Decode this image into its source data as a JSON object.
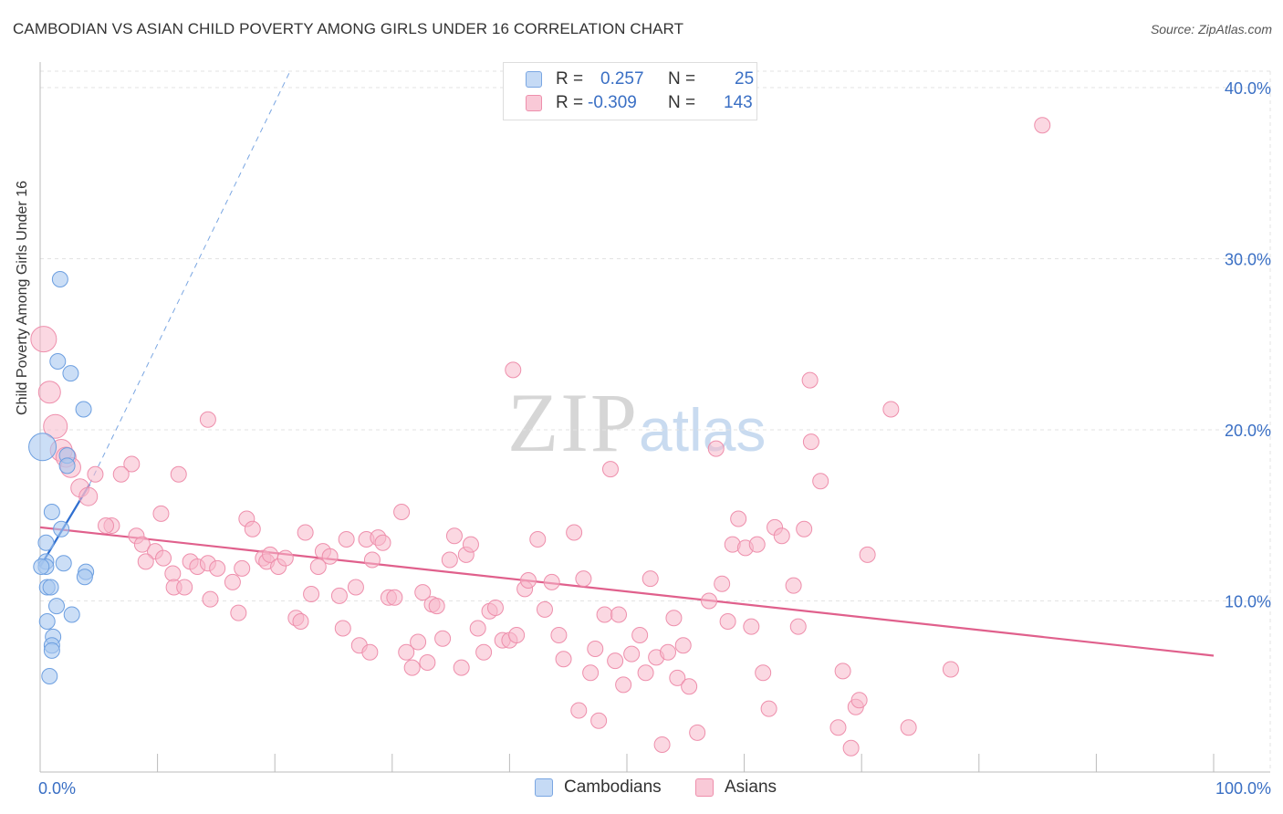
{
  "header": {
    "title": "CAMBODIAN VS ASIAN CHILD POVERTY AMONG GIRLS UNDER 16 CORRELATION CHART",
    "source": "Source: ZipAtlas.com"
  },
  "legend": {
    "rows": [
      {
        "r_label": "R =",
        "r_value": "0.257",
        "n_label": "N =",
        "n_value": "25"
      },
      {
        "r_label": "R =",
        "r_value": "-0.309",
        "n_label": "N =",
        "n_value": "143"
      }
    ]
  },
  "bottom_legend": {
    "cambodians": "Cambodians",
    "asians": "Asians"
  },
  "watermark": {
    "zip": "ZIP",
    "atlas": "atlas"
  },
  "colors": {
    "cambodian_fill": "#a9c8f0",
    "cambodian_stroke": "#6d9fe0",
    "cambodian_line": "#2f6fd0",
    "asian_fill": "#f7b8cb",
    "asian_stroke": "#ee8fac",
    "asian_line": "#e0608c",
    "tick_label": "#3a6fc4",
    "grid": "#e3e3e3"
  },
  "chart_data": {
    "type": "scatter",
    "title": "CAMBODIAN VS ASIAN CHILD POVERTY AMONG GIRLS UNDER 16 CORRELATION CHART",
    "xlabel": "",
    "ylabel": "Child Poverty Among Girls Under 16",
    "xlim": [
      0,
      100
    ],
    "ylim": [
      0,
      40
    ],
    "x_tick_labels": {
      "0": "0.0%",
      "100": "100.0%"
    },
    "y_ticks": [
      10,
      20,
      30,
      40
    ],
    "y_tick_labels": [
      "10.0%",
      "20.0%",
      "30.0%",
      "40.0%"
    ],
    "grid": true,
    "legend_placement": "top-center",
    "series": [
      {
        "name": "Cambodians",
        "r": 0.257,
        "n": 25,
        "points": [
          [
            0.2,
            19.0
          ],
          [
            1.7,
            28.8
          ],
          [
            1.5,
            24.0
          ],
          [
            2.6,
            23.3
          ],
          [
            3.7,
            21.2
          ],
          [
            2.3,
            18.5
          ],
          [
            2.3,
            17.9
          ],
          [
            1.0,
            15.2
          ],
          [
            1.8,
            14.2
          ],
          [
            0.5,
            13.4
          ],
          [
            0.5,
            12.3
          ],
          [
            0.5,
            12.0
          ],
          [
            2.0,
            12.2
          ],
          [
            3.9,
            11.7
          ],
          [
            3.8,
            11.4
          ],
          [
            0.6,
            10.8
          ],
          [
            0.9,
            10.8
          ],
          [
            1.4,
            9.7
          ],
          [
            2.7,
            9.2
          ],
          [
            0.6,
            8.8
          ],
          [
            1.1,
            7.9
          ],
          [
            1.0,
            7.4
          ],
          [
            1.0,
            7.1
          ],
          [
            0.8,
            5.6
          ],
          [
            0.1,
            12.0
          ]
        ],
        "trend": {
          "x": [
            0.0,
            4.2
          ],
          "y": [
            12.0,
            16.8
          ]
        },
        "trend_extended": {
          "x": [
            4.2,
            21.3
          ],
          "y": [
            16.8,
            40.0
          ]
        }
      },
      {
        "name": "Asians",
        "r": -0.309,
        "n": 143,
        "points": [
          [
            0.3,
            25.3
          ],
          [
            0.8,
            22.2
          ],
          [
            1.3,
            20.2
          ],
          [
            1.8,
            18.8
          ],
          [
            2.2,
            18.4
          ],
          [
            2.6,
            17.8
          ],
          [
            3.4,
            16.6
          ],
          [
            4.1,
            16.1
          ],
          [
            14.3,
            20.6
          ],
          [
            7.8,
            18.0
          ],
          [
            11.8,
            17.4
          ],
          [
            6.9,
            17.4
          ],
          [
            4.7,
            17.4
          ],
          [
            10.3,
            15.1
          ],
          [
            6.1,
            14.4
          ],
          [
            5.6,
            14.4
          ],
          [
            8.2,
            13.8
          ],
          [
            8.7,
            13.3
          ],
          [
            9.8,
            12.9
          ],
          [
            10.5,
            12.5
          ],
          [
            9.0,
            12.3
          ],
          [
            12.8,
            12.3
          ],
          [
            11.3,
            11.6
          ],
          [
            13.4,
            12.0
          ],
          [
            14.3,
            12.2
          ],
          [
            15.1,
            11.9
          ],
          [
            16.4,
            11.1
          ],
          [
            17.2,
            11.9
          ],
          [
            11.4,
            10.8
          ],
          [
            12.3,
            10.8
          ],
          [
            14.5,
            10.1
          ],
          [
            16.9,
            9.3
          ],
          [
            17.6,
            14.8
          ],
          [
            18.1,
            14.2
          ],
          [
            19.0,
            12.5
          ],
          [
            19.3,
            12.3
          ],
          [
            19.6,
            12.7
          ],
          [
            20.3,
            12.0
          ],
          [
            20.9,
            12.5
          ],
          [
            21.8,
            9.0
          ],
          [
            22.2,
            8.8
          ],
          [
            22.6,
            14.0
          ],
          [
            23.1,
            10.4
          ],
          [
            23.7,
            12.0
          ],
          [
            24.1,
            12.9
          ],
          [
            24.7,
            12.6
          ],
          [
            25.5,
            10.3
          ],
          [
            25.8,
            8.4
          ],
          [
            26.1,
            13.6
          ],
          [
            26.9,
            10.8
          ],
          [
            27.2,
            7.4
          ],
          [
            27.8,
            13.6
          ],
          [
            28.1,
            7.0
          ],
          [
            28.3,
            12.4
          ],
          [
            28.8,
            13.7
          ],
          [
            29.2,
            13.4
          ],
          [
            29.7,
            10.2
          ],
          [
            30.2,
            10.2
          ],
          [
            30.8,
            15.2
          ],
          [
            31.2,
            7.0
          ],
          [
            31.7,
            6.1
          ],
          [
            32.2,
            7.6
          ],
          [
            32.6,
            10.5
          ],
          [
            33.0,
            6.4
          ],
          [
            33.4,
            9.8
          ],
          [
            33.8,
            9.7
          ],
          [
            34.3,
            7.8
          ],
          [
            34.9,
            12.4
          ],
          [
            35.3,
            13.8
          ],
          [
            35.9,
            6.1
          ],
          [
            36.3,
            12.7
          ],
          [
            36.7,
            13.3
          ],
          [
            37.3,
            8.4
          ],
          [
            37.8,
            7.0
          ],
          [
            38.3,
            9.4
          ],
          [
            38.8,
            9.6
          ],
          [
            39.4,
            7.7
          ],
          [
            40.0,
            7.7
          ],
          [
            40.6,
            8.0
          ],
          [
            40.3,
            23.5
          ],
          [
            41.3,
            10.7
          ],
          [
            41.6,
            11.2
          ],
          [
            42.4,
            13.6
          ],
          [
            43.0,
            9.5
          ],
          [
            43.6,
            11.1
          ],
          [
            44.2,
            8.0
          ],
          [
            44.6,
            6.6
          ],
          [
            45.5,
            14.0
          ],
          [
            45.9,
            3.6
          ],
          [
            46.3,
            11.3
          ],
          [
            46.9,
            5.8
          ],
          [
            47.3,
            7.2
          ],
          [
            47.6,
            3.0
          ],
          [
            48.1,
            9.2
          ],
          [
            48.6,
            17.7
          ],
          [
            49.0,
            6.5
          ],
          [
            49.3,
            9.2
          ],
          [
            49.7,
            5.1
          ],
          [
            50.4,
            6.9
          ],
          [
            51.1,
            8.0
          ],
          [
            51.6,
            5.8
          ],
          [
            52.0,
            11.3
          ],
          [
            52.5,
            6.7
          ],
          [
            53.0,
            1.6
          ],
          [
            53.5,
            7.0
          ],
          [
            54.0,
            9.0
          ],
          [
            54.3,
            5.5
          ],
          [
            54.8,
            7.4
          ],
          [
            55.3,
            5.0
          ],
          [
            56.0,
            2.3
          ],
          [
            57.0,
            10.0
          ],
          [
            57.6,
            18.9
          ],
          [
            58.1,
            11.0
          ],
          [
            58.6,
            8.8
          ],
          [
            59.0,
            13.3
          ],
          [
            59.5,
            14.8
          ],
          [
            60.1,
            13.1
          ],
          [
            60.6,
            8.5
          ],
          [
            61.1,
            13.3
          ],
          [
            61.6,
            5.8
          ],
          [
            62.1,
            3.7
          ],
          [
            62.6,
            14.3
          ],
          [
            63.2,
            13.8
          ],
          [
            64.2,
            10.9
          ],
          [
            64.6,
            8.5
          ],
          [
            65.1,
            14.2
          ],
          [
            65.6,
            22.9
          ],
          [
            65.7,
            19.3
          ],
          [
            66.5,
            17.0
          ],
          [
            68.0,
            2.6
          ],
          [
            68.4,
            5.9
          ],
          [
            69.1,
            1.4
          ],
          [
            69.5,
            3.8
          ],
          [
            69.8,
            4.2
          ],
          [
            70.5,
            12.7
          ],
          [
            72.5,
            21.2
          ],
          [
            74.0,
            2.6
          ],
          [
            77.6,
            6.0
          ],
          [
            85.4,
            37.8
          ]
        ],
        "trend": {
          "x": [
            0.0,
            100.0
          ],
          "y": [
            14.3,
            6.8
          ]
        }
      }
    ]
  }
}
